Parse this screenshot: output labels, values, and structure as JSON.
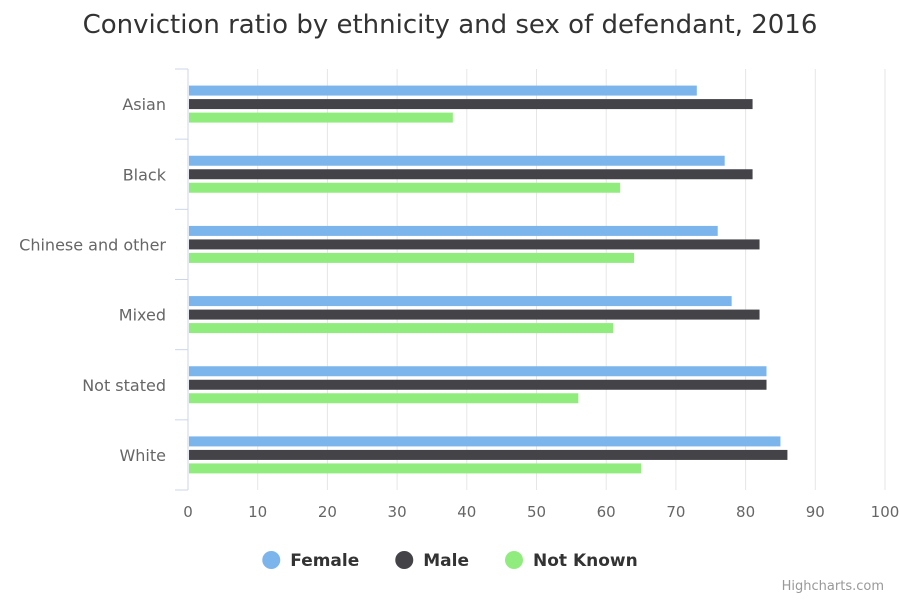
{
  "chart_data": {
    "type": "bar",
    "orientation": "horizontal",
    "title": "Conviction ratio by ethnicity and sex of defendant, 2016",
    "categories": [
      "Asian",
      "Black",
      "Chinese and other",
      "Mixed",
      "Not stated",
      "White"
    ],
    "series": [
      {
        "name": "Female",
        "color": "#7cb5ec",
        "values": [
          73,
          77,
          76,
          78,
          83,
          85
        ]
      },
      {
        "name": "Male",
        "color": "#434348",
        "values": [
          81,
          81,
          82,
          82,
          83,
          86
        ]
      },
      {
        "name": "Not Known",
        "color": "#90ed7d",
        "values": [
          38,
          62,
          64,
          61,
          56,
          65
        ]
      }
    ],
    "xlim": [
      0,
      100
    ],
    "x_ticks": [
      0,
      10,
      20,
      30,
      40,
      50,
      60,
      70,
      80,
      90,
      100
    ],
    "grid": true,
    "legend_position": "bottom-center"
  },
  "credits": "Highcharts.com"
}
